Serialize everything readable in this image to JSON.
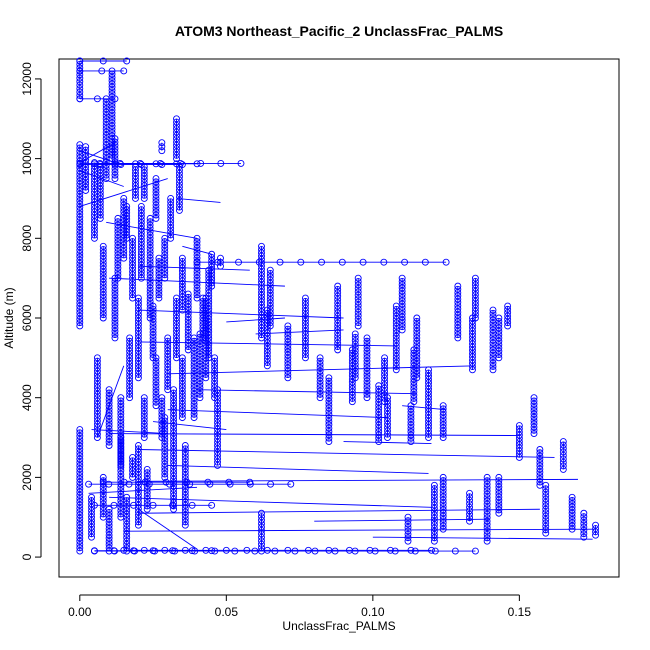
{
  "chart_data": {
    "type": "scatter",
    "title": "ATOM3 Northeast_Pacific_2 UnclassFrac_PALMS",
    "xlabel": "UnclassFrac_PALMS",
    "ylabel": "Altitude (m)",
    "xlim": [
      -0.0071,
      0.184
    ],
    "ylim": [
      -500,
      12500
    ],
    "x_ticks": [
      0.0,
      0.05,
      0.1,
      0.15
    ],
    "x_tick_labels": [
      "0.00",
      "0.05",
      "0.10",
      "0.15"
    ],
    "y_ticks": [
      0,
      2000,
      4000,
      6000,
      8000,
      10000,
      12000
    ],
    "y_tick_labels": [
      "0",
      "2000",
      "4000",
      "6000",
      "8000",
      "10000",
      "12000"
    ],
    "grid": false,
    "legend": "none",
    "color": "#0000ff",
    "marker": "open-circle",
    "connect_points": true,
    "series": [
      {
        "columns": [
          [
            0.0,
            150,
            3200
          ],
          [
            0.0,
            5800,
            10350
          ],
          [
            0.0,
            11500,
            12450
          ],
          [
            0.002,
            9200,
            10300
          ],
          [
            0.004,
            500,
            1500
          ],
          [
            0.005,
            8000,
            9900
          ],
          [
            0.006,
            3000,
            5000
          ],
          [
            0.007,
            8500,
            9800
          ],
          [
            0.008,
            1000,
            2000
          ],
          [
            0.008,
            6000,
            7800
          ],
          [
            0.009,
            9500,
            11500
          ],
          [
            0.01,
            2800,
            4200
          ],
          [
            0.01,
            150,
            1200
          ],
          [
            0.011,
            10000,
            12200
          ],
          [
            0.012,
            5500,
            7000
          ],
          [
            0.012,
            9500,
            10500
          ],
          [
            0.013,
            7000,
            8500
          ],
          [
            0.014,
            2300,
            4000
          ],
          [
            0.014,
            1000,
            3000
          ],
          [
            0.015,
            7500,
            9000
          ],
          [
            0.016,
            8000,
            8800
          ],
          [
            0.016,
            150,
            1500
          ],
          [
            0.017,
            4000,
            5500
          ],
          [
            0.018,
            6500,
            8000
          ],
          [
            0.018,
            2000,
            2500
          ],
          [
            0.019,
            9000,
            9800
          ],
          [
            0.02,
            4500,
            6500
          ],
          [
            0.02,
            800,
            2800
          ],
          [
            0.021,
            7000,
            8800
          ],
          [
            0.022,
            3000,
            4000
          ],
          [
            0.022,
            9000,
            9800
          ],
          [
            0.023,
            1200,
            2200
          ],
          [
            0.024,
            6000,
            8500
          ],
          [
            0.025,
            5000,
            6300
          ],
          [
            0.026,
            3800,
            5000
          ],
          [
            0.026,
            8500,
            9500
          ],
          [
            0.027,
            6500,
            7500
          ],
          [
            0.028,
            3000,
            4000
          ],
          [
            0.028,
            10200,
            10400
          ],
          [
            0.029,
            2000,
            3500
          ],
          [
            0.029,
            7000,
            8000
          ],
          [
            0.03,
            4200,
            5500
          ],
          [
            0.031,
            8000,
            9000
          ],
          [
            0.032,
            1200,
            4200
          ],
          [
            0.033,
            5000,
            6500
          ],
          [
            0.033,
            10000,
            11000
          ],
          [
            0.034,
            8700,
            9800
          ],
          [
            0.035,
            3500,
            5000
          ],
          [
            0.035,
            6200,
            7500
          ],
          [
            0.036,
            800,
            2800
          ],
          [
            0.037,
            5200,
            6600
          ],
          [
            0.039,
            3500,
            5500
          ],
          [
            0.04,
            6500,
            8000
          ],
          [
            0.041,
            4000,
            5600
          ],
          [
            0.042,
            5500,
            6500
          ],
          [
            0.043,
            4500,
            6500
          ],
          [
            0.044,
            5000,
            7200
          ],
          [
            0.045,
            6800,
            7600
          ],
          [
            0.046,
            4000,
            5000
          ],
          [
            0.047,
            2300,
            4200
          ],
          [
            0.048,
            7300,
            7500
          ],
          [
            0.062,
            150,
            1100
          ],
          [
            0.062,
            5500,
            7800
          ],
          [
            0.064,
            4800,
            6200
          ],
          [
            0.065,
            5800,
            7200
          ],
          [
            0.071,
            4500,
            5800
          ],
          [
            0.077,
            5000,
            6500
          ],
          [
            0.082,
            4000,
            5000
          ],
          [
            0.085,
            2900,
            4500
          ],
          [
            0.088,
            5200,
            6800
          ],
          [
            0.093,
            3900,
            5200
          ],
          [
            0.094,
            4500,
            5600
          ],
          [
            0.095,
            5800,
            7000
          ],
          [
            0.098,
            4000,
            5500
          ],
          [
            0.102,
            2900,
            4300
          ],
          [
            0.104,
            3900,
            5000
          ],
          [
            0.105,
            3000,
            4000
          ],
          [
            0.108,
            4700,
            6300
          ],
          [
            0.11,
            5700,
            7000
          ],
          [
            0.112,
            400,
            1000
          ],
          [
            0.113,
            2900,
            3800
          ],
          [
            0.114,
            3900,
            5200
          ],
          [
            0.115,
            4500,
            6000
          ],
          [
            0.119,
            3000,
            4700
          ],
          [
            0.121,
            400,
            1800
          ],
          [
            0.124,
            3000,
            3800
          ],
          [
            0.124,
            700,
            2000
          ],
          [
            0.129,
            5500,
            6800
          ],
          [
            0.133,
            900,
            1600
          ],
          [
            0.134,
            4700,
            6000
          ],
          [
            0.135,
            6000,
            7000
          ],
          [
            0.139,
            400,
            2000
          ],
          [
            0.141,
            4700,
            6200
          ],
          [
            0.143,
            5000,
            6000
          ],
          [
            0.143,
            1100,
            2000
          ],
          [
            0.146,
            5800,
            6300
          ],
          [
            0.15,
            2500,
            3300
          ],
          [
            0.155,
            3100,
            4000
          ],
          [
            0.157,
            1800,
            2700
          ],
          [
            0.159,
            600,
            1800
          ],
          [
            0.165,
            2200,
            2900
          ],
          [
            0.168,
            700,
            1500
          ],
          [
            0.172,
            500,
            1100
          ],
          [
            0.176,
            550,
            800
          ]
        ],
        "horizontal_runs": [
          [
            0.0,
            0.016,
            12450
          ],
          [
            0.0,
            0.015,
            12200
          ],
          [
            0.0,
            0.012,
            11500
          ],
          [
            0.0,
            0.055,
            9880
          ],
          [
            0.005,
            0.04,
            9870
          ],
          [
            0.0,
            0.035,
            9850
          ],
          [
            0.04,
            0.125,
            7400
          ],
          [
            0.003,
            0.072,
            1830
          ],
          [
            0.008,
            0.058,
            1880
          ],
          [
            0.005,
            0.045,
            1300
          ],
          [
            0.005,
            0.135,
            150
          ],
          [
            0.005,
            0.045,
            160
          ],
          [
            0.015,
            0.12,
            170
          ]
        ],
        "diagonals": [
          [
            0.0,
            9900,
            0.012,
            10400
          ],
          [
            0.0,
            9700,
            0.015,
            9300
          ],
          [
            0.0,
            8800,
            0.03,
            9500
          ],
          [
            0.009,
            8400,
            0.04,
            8000
          ],
          [
            0.01,
            7000,
            0.07,
            6800
          ],
          [
            0.02,
            6200,
            0.09,
            6000
          ],
          [
            0.02,
            5400,
            0.108,
            5300
          ],
          [
            0.03,
            4600,
            0.135,
            4800
          ],
          [
            0.04,
            4200,
            0.115,
            4100
          ],
          [
            0.03,
            3700,
            0.105,
            3500
          ],
          [
            0.01,
            3100,
            0.15,
            3050
          ],
          [
            0.02,
            2700,
            0.162,
            2500
          ],
          [
            0.03,
            2300,
            0.119,
            2100
          ],
          [
            0.02,
            1900,
            0.17,
            1950
          ],
          [
            0.01,
            1500,
            0.12,
            1250
          ],
          [
            0.02,
            1100,
            0.157,
            1200
          ],
          [
            0.015,
            650,
            0.176,
            700
          ],
          [
            0.1,
            500,
            0.175,
            450
          ],
          [
            0.08,
            900,
            0.14,
            950
          ],
          [
            0.003,
            1600,
            0.04,
            1750
          ],
          [
            0.02,
            1200,
            0.04,
            200
          ],
          [
            0.015,
            4800,
            0.006,
            3000
          ],
          [
            0.035,
            7800,
            0.045,
            7600
          ],
          [
            0.025,
            3400,
            0.05,
            3200
          ],
          [
            0.033,
            9000,
            0.048,
            8900
          ],
          [
            0.05,
            5900,
            0.07,
            6000
          ],
          [
            0.11,
            3800,
            0.125,
            3700
          ],
          [
            0.09,
            2900,
            0.12,
            2850
          ],
          [
            0.0,
            10200,
            0.012,
            9900
          ],
          [
            0.004,
            3200,
            0.03,
            3100
          ],
          [
            0.09,
            5700,
            0.06,
            5600
          ],
          [
            0.058,
            7200,
            0.02,
            7300
          ]
        ]
      }
    ]
  }
}
